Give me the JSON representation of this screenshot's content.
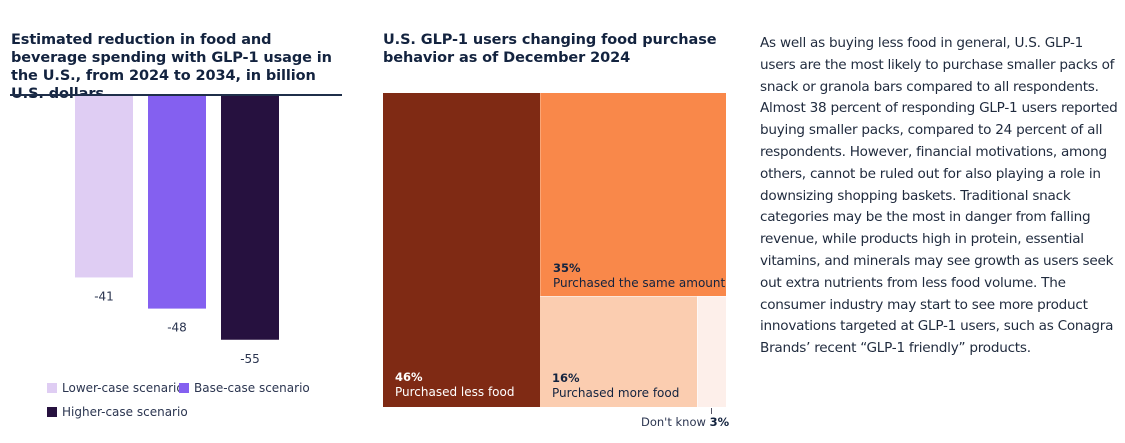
{
  "chart_data": [
    {
      "type": "bar",
      "title": "Estimated reduction in food and beverage spending with GLP-1 usage in the U.S., from 2024 to 2034, in billion U.S. dollars",
      "categories": [
        "Lower-case scenario",
        "Base-case scenario",
        "Higher-case scenario"
      ],
      "values": [
        -41,
        -48,
        -55
      ],
      "value_labels": [
        "-41",
        "-48",
        "-55"
      ],
      "colors": [
        "#dfcdf3",
        "#8460f0",
        "#26113f"
      ],
      "xlabel": "",
      "ylabel": "",
      "ylim": [
        -60,
        0
      ],
      "grid": false,
      "legend": {
        "placement": "bottom",
        "entries": [
          "Lower-case scenario",
          "Base-case scenario",
          "Higher-case scenario"
        ]
      }
    },
    {
      "type": "treemap",
      "title": "U.S. GLP-1 users changing food purchase behavior as of December 2024",
      "segments": [
        {
          "label": "Purchased less food",
          "value": 46,
          "display": "46%",
          "color": "#7f2a14",
          "text_color": "#ffffff"
        },
        {
          "label": "Purchased the same amount",
          "value": 35,
          "display": "35%",
          "color": "#f9884a",
          "text_color": "#13233f"
        },
        {
          "label": "Purchased more food",
          "value": 16,
          "display": "16%",
          "color": "#fbcdb0",
          "text_color": "#13233f"
        },
        {
          "label": "Don't know",
          "value": 3,
          "display": "3%",
          "color": "#fdefea",
          "text_color": "#13233f"
        }
      ]
    }
  ],
  "text": {
    "paragraph": "As well as buying less food in general, U.S. GLP-1 users are the most likely to purchase smaller packs of snack or granola bars compared to all respondents. Almost 38 percent of responding GLP-1 users reported buying smaller packs, compared to 24 percent of all respondents. However, financial motivations, among others, cannot be ruled out for also playing a role in downsizing shopping baskets. Traditional snack categories may be the most in danger from falling revenue, while products high in protein, essential vitamins, and minerals may see growth as users seek out extra nutrients from less food volume. The consumer industry may start to see more product innovations targeted at GLP-1 users, such as Conagra Brands’ recent “GLP-1 friendly” products."
  },
  "colors": {
    "title": "#13233f",
    "axis": "#1f2f4a"
  }
}
